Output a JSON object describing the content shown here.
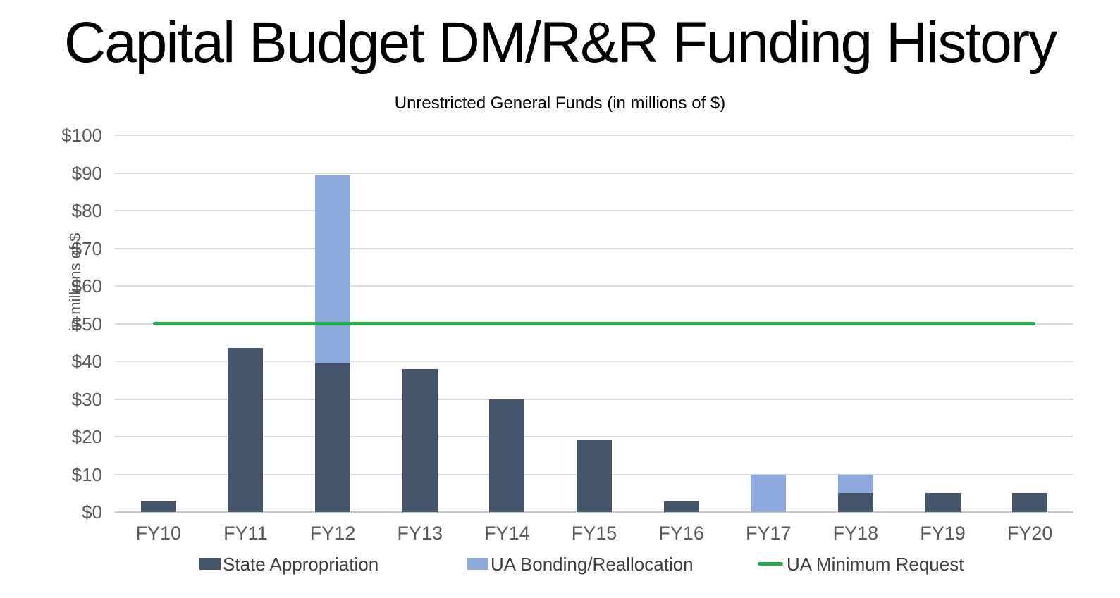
{
  "chart_data": {
    "type": "bar",
    "stacked": true,
    "title": "Capital Budget DM/R&R Funding History",
    "subtitle": "Unrestricted General Funds (in millions of $)",
    "ylabel": "in millions of $",
    "xlabel": "",
    "ylim": [
      0,
      100
    ],
    "y_tick_step": 10,
    "y_tick_labels": [
      "$0",
      "$10",
      "$20",
      "$30",
      "$40",
      "$50",
      "$60",
      "$70",
      "$80",
      "$90",
      "$100"
    ],
    "grid": true,
    "legend_position": "bottom",
    "categories": [
      "FY10",
      "FY11",
      "FY12",
      "FY13",
      "FY14",
      "FY15",
      "FY16",
      "FY17",
      "FY18",
      "FY19",
      "FY20"
    ],
    "series": [
      {
        "name": "State Appropriation",
        "type": "bar",
        "color": "#44546A",
        "values": [
          3,
          43.5,
          39.5,
          38,
          30,
          19.3,
          3,
          0,
          5,
          5,
          5
        ]
      },
      {
        "name": "UA Bonding/Reallocation",
        "type": "bar",
        "color": "#8EA9DB",
        "values": [
          0,
          0,
          50,
          0,
          0,
          0,
          0,
          10,
          5,
          0,
          0
        ]
      },
      {
        "name": "UA Minimum Request",
        "type": "line",
        "color": "#22AC4E",
        "values": [
          50,
          50,
          50,
          50,
          50,
          50,
          50,
          50,
          50,
          50,
          50
        ]
      }
    ],
    "colors": {
      "gridline": "#DCDCDC",
      "axis_line": "#C6C6C6",
      "tick_text": "#595959",
      "legend_text": "#404040",
      "title_text": "#000000"
    }
  }
}
